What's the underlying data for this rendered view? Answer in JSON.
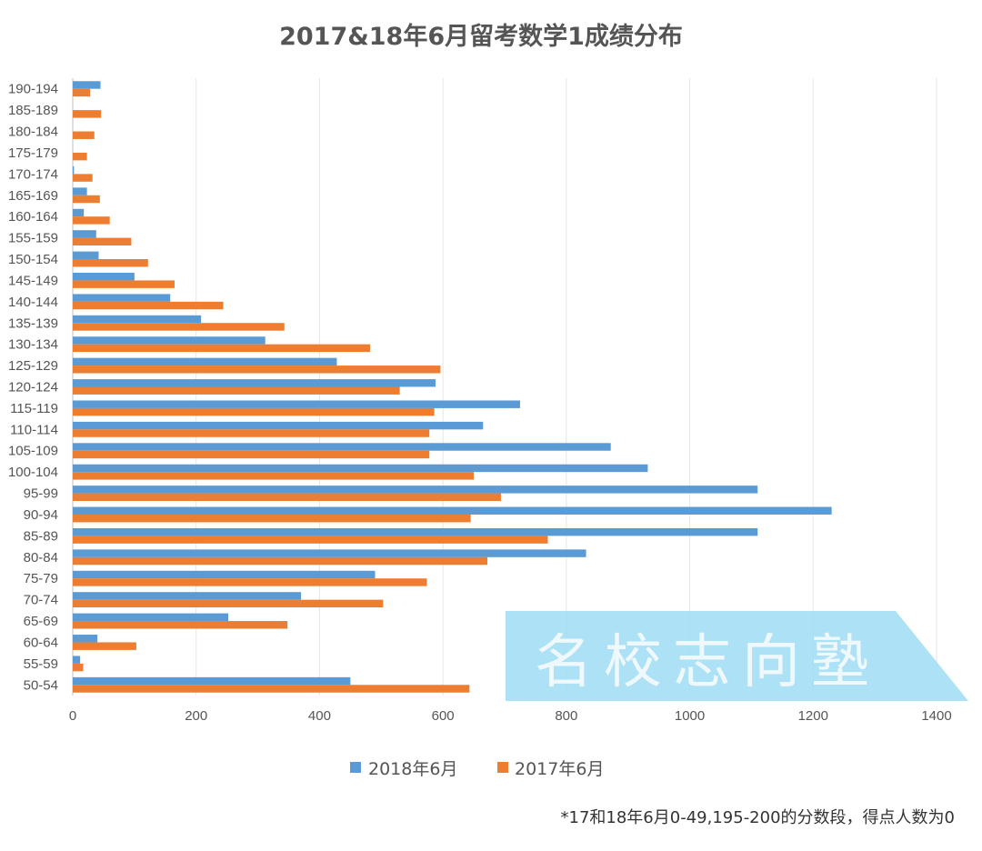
{
  "chart_data": {
    "type": "bar",
    "orientation": "horizontal",
    "title": "2017&18年6月留考数学1成绩分布",
    "categories": [
      "190-194",
      "185-189",
      "180-184",
      "175-179",
      "170-174",
      "165-169",
      "160-164",
      "155-159",
      "150-154",
      "145-149",
      "140-144",
      "135-139",
      "130-134",
      "125-129",
      "120-124",
      "115-119",
      "110-114",
      "105-109",
      "100-104",
      "95-99",
      "90-94",
      "85-89",
      "80-84",
      "75-79",
      "70-74",
      "65-69",
      "60-64",
      "55-59",
      "50-54"
    ],
    "series": [
      {
        "name": "2018年6月",
        "color": "#5b9bd5",
        "values": [
          45,
          0,
          0,
          0,
          2,
          23,
          18,
          38,
          42,
          100,
          158,
          208,
          312,
          428,
          588,
          725,
          665,
          872,
          932,
          1110,
          1230,
          1110,
          832,
          490,
          370,
          252,
          40,
          12,
          450
        ]
      },
      {
        "name": "2017年6月",
        "color": "#ed7d31",
        "values": [
          28,
          46,
          35,
          23,
          32,
          44,
          60,
          95,
          122,
          165,
          244,
          343,
          482,
          596,
          530,
          586,
          578,
          578,
          650,
          694,
          645,
          770,
          672,
          574,
          503,
          348,
          103,
          17,
          643
        ]
      }
    ],
    "xticks": [
      0,
      200,
      400,
      600,
      800,
      1000,
      1200,
      1400
    ],
    "xlim": [
      0,
      1400
    ],
    "grid": "vertical",
    "legend_position": "bottom"
  },
  "legend": {
    "items": [
      "2018年6月",
      "2017年6月"
    ]
  },
  "footnote": "*17和18年6月0-49,195-200的分数段，得点人数为0",
  "watermark": {
    "text": "名校志向塾",
    "color": "#9fdcf5"
  }
}
